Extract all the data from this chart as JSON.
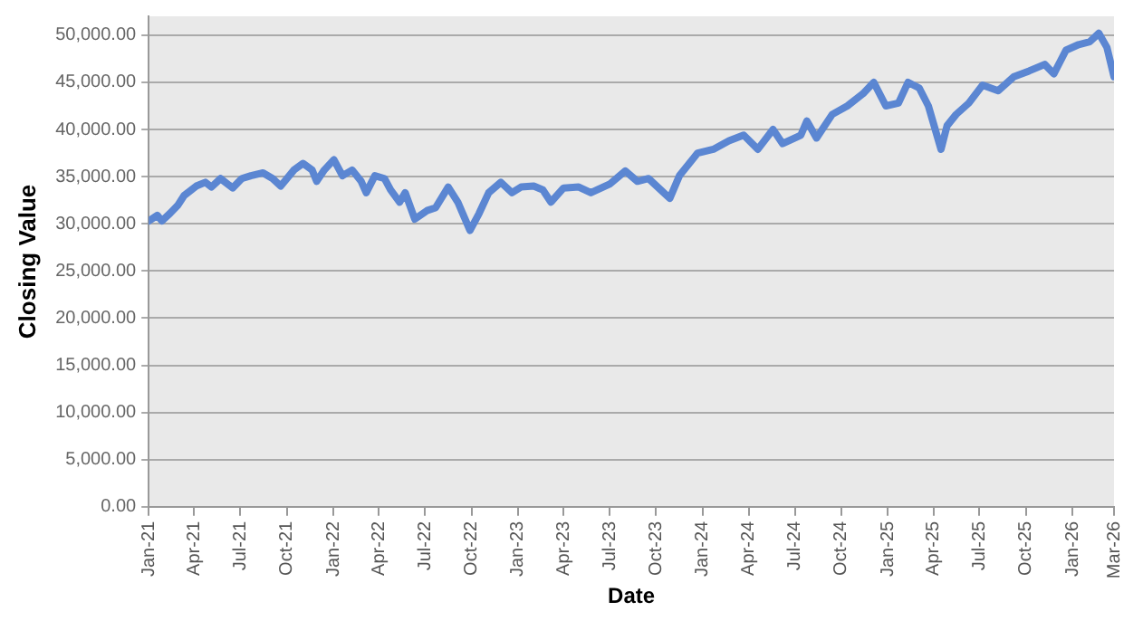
{
  "chart_data": {
    "type": "line",
    "xlabel": "Date",
    "ylabel": "Closing Value",
    "x": [
      "2021-01-01",
      "2021-01-18",
      "2021-01-27",
      "2021-02-12",
      "2021-02-28",
      "2021-03-12",
      "2021-04-05",
      "2021-04-23",
      "2021-05-05",
      "2021-05-23",
      "2021-06-16",
      "2021-07-04",
      "2021-07-22",
      "2021-08-15",
      "2021-09-03",
      "2021-09-19",
      "2021-10-15",
      "2021-11-02",
      "2021-11-20",
      "2021-11-29",
      "2021-12-14",
      "2022-01-02",
      "2022-01-19",
      "2022-02-07",
      "2022-02-25",
      "2022-03-07",
      "2022-03-24",
      "2022-04-12",
      "2022-04-24",
      "2022-05-12",
      "2022-05-23",
      "2022-06-11",
      "2022-07-05",
      "2022-07-22",
      "2022-08-16",
      "2022-09-04",
      "2022-09-28",
      "2022-10-16",
      "2022-11-04",
      "2022-11-28",
      "2022-12-20",
      "2023-01-07",
      "2023-02-01",
      "2023-02-19",
      "2023-03-07",
      "2023-04-01",
      "2023-05-01",
      "2023-05-25",
      "2023-07-01",
      "2023-08-01",
      "2023-08-25",
      "2023-09-16",
      "2023-10-10",
      "2023-10-28",
      "2023-11-16",
      "2023-12-22",
      "2024-01-22",
      "2024-02-22",
      "2024-03-22",
      "2024-04-19",
      "2024-05-19",
      "2024-06-07",
      "2024-07-13",
      "2024-07-25",
      "2024-08-13",
      "2024-09-13",
      "2024-10-13",
      "2024-11-13",
      "2024-12-04",
      "2024-12-28",
      "2025-01-22",
      "2025-02-10",
      "2025-03-04",
      "2025-03-22",
      "2025-04-16",
      "2025-04-28",
      "2025-05-16",
      "2025-06-10",
      "2025-07-07",
      "2025-08-07",
      "2025-09-07",
      "2025-10-07",
      "2025-11-07",
      "2025-11-25",
      "2025-12-19",
      "2026-01-13",
      "2026-02-04",
      "2026-02-22",
      "2026-03-10",
      "2026-03-24"
    ],
    "series": [
      {
        "color": "#5b86d2",
        "values": [
          30300,
          30900,
          30300,
          31100,
          32000,
          33000,
          34000,
          34400,
          33900,
          34800,
          33800,
          34800,
          35100,
          35400,
          34800,
          34000,
          35700,
          36400,
          35700,
          34500,
          35700,
          36800,
          35100,
          35700,
          34500,
          33300,
          35100,
          34800,
          33600,
          32300,
          33300,
          30500,
          31400,
          31700,
          33900,
          32300,
          29300,
          31100,
          33300,
          34400,
          33300,
          33900,
          34000,
          33600,
          32300,
          33800,
          33900,
          33300,
          34200,
          35600,
          34500,
          34800,
          33600,
          32700,
          35100,
          37500,
          37900,
          38800,
          39400,
          37900,
          40000,
          38500,
          39400,
          40900,
          39100,
          41600,
          42500,
          43800,
          45000,
          42500,
          42800,
          45000,
          44400,
          42500,
          37900,
          40400,
          41600,
          42800,
          44700,
          44100,
          45600,
          46200,
          46900,
          45900,
          48400,
          49000,
          49300,
          50200,
          48700,
          45600
        ]
      }
    ],
    "xlim": [
      "2021-01-01",
      "2026-03-24"
    ],
    "xticks": [
      {
        "value": "2021-01-01",
        "label": "Jan-21"
      },
      {
        "value": "2021-04-01",
        "label": "Apr-21"
      },
      {
        "value": "2021-07-01",
        "label": "Jul-21"
      },
      {
        "value": "2021-10-01",
        "label": "Oct-21"
      },
      {
        "value": "2022-01-01",
        "label": "Jan-22"
      },
      {
        "value": "2022-04-01",
        "label": "Apr-22"
      },
      {
        "value": "2022-07-01",
        "label": "Jul-22"
      },
      {
        "value": "2022-10-01",
        "label": "Oct-22"
      },
      {
        "value": "2023-01-01",
        "label": "Jan-23"
      },
      {
        "value": "2023-04-01",
        "label": "Apr-23"
      },
      {
        "value": "2023-07-01",
        "label": "Jul-23"
      },
      {
        "value": "2023-10-01",
        "label": "Oct-23"
      },
      {
        "value": "2024-01-01",
        "label": "Jan-24"
      },
      {
        "value": "2024-04-01",
        "label": "Apr-24"
      },
      {
        "value": "2024-07-01",
        "label": "Jul-24"
      },
      {
        "value": "2024-10-01",
        "label": "Oct-24"
      },
      {
        "value": "2025-01-01",
        "label": "Jan-25"
      },
      {
        "value": "2025-04-01",
        "label": "Apr-25"
      },
      {
        "value": "2025-07-01",
        "label": "Jul-25"
      },
      {
        "value": "2025-10-01",
        "label": "Oct-25"
      },
      {
        "value": "2026-01-01",
        "label": "Jan-26"
      },
      {
        "value": "2026-03-24",
        "label": "Mar-26"
      }
    ],
    "ylim": [
      0,
      52000
    ],
    "yticks": [
      {
        "value": 0,
        "label": "0.00"
      },
      {
        "value": 5000,
        "label": "5,000.00"
      },
      {
        "value": 10000,
        "label": "10,000.00"
      },
      {
        "value": 15000,
        "label": "15,000.00"
      },
      {
        "value": 20000,
        "label": "20,000.00"
      },
      {
        "value": 25000,
        "label": "25,000.00"
      },
      {
        "value": 30000,
        "label": "30,000.00"
      },
      {
        "value": 35000,
        "label": "35,000.00"
      },
      {
        "value": 40000,
        "label": "40,000.00"
      },
      {
        "value": 45000,
        "label": "45,000.00"
      },
      {
        "value": 50000,
        "label": "50,000.00"
      }
    ],
    "grid": "y",
    "legend": false,
    "marker": "none",
    "line_style": "solid"
  }
}
